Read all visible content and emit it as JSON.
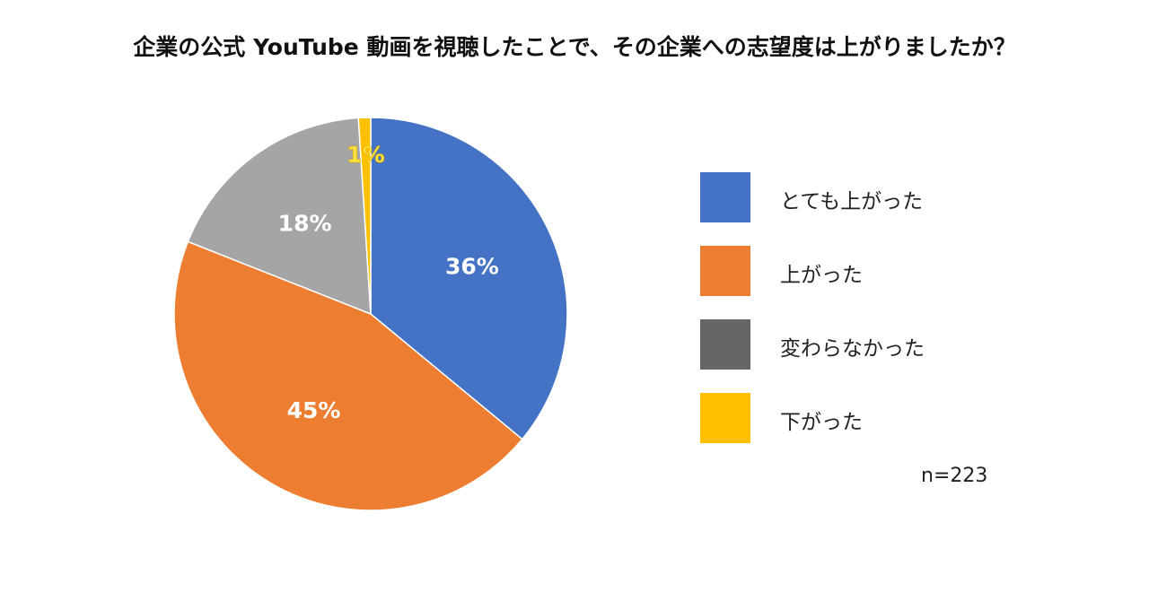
{
  "chart_data": {
    "type": "pie",
    "title": "企業の公式 YouTube 動画を視聴したことで、その企業への志望度は上がりましたか？",
    "slices": [
      {
        "label": "とても上がった",
        "value": 36,
        "display": "36%",
        "color": "#4472C4"
      },
      {
        "label": "上がった",
        "value": 45,
        "display": "45%",
        "color": "#ED7D31"
      },
      {
        "label": "変わらなかった",
        "value": 18,
        "display": "18%",
        "color": "#A5A5A5"
      },
      {
        "label": "下がった",
        "value": 1,
        "display": "1%",
        "color": "#FFC000"
      }
    ],
    "legend_swatch_colors": [
      "#4472C4",
      "#ED7D31",
      "#666666",
      "#FFC000"
    ],
    "legend_position": "right",
    "sample_size": "n=223"
  }
}
